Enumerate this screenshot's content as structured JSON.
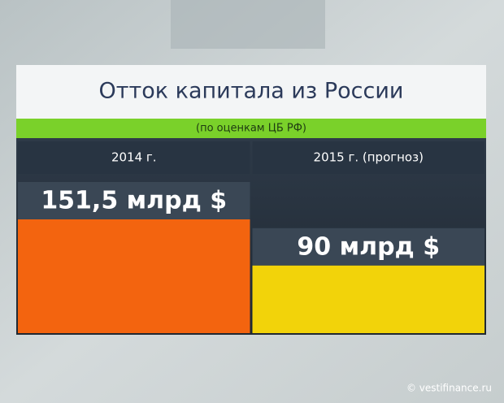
{
  "chart_data": {
    "type": "bar",
    "title": "Отток капитала из России",
    "subtitle": "(по оценкам ЦБ РФ)",
    "categories": [
      "2014 г.",
      "2015 г. (прогноз)"
    ],
    "values": [
      151.5,
      90
    ],
    "value_labels": [
      "151,5 млрд $",
      "90 млрд $"
    ],
    "colors": [
      "#f3640f",
      "#f2d30a"
    ]
  },
  "watermark": "© vestifinance.ru"
}
